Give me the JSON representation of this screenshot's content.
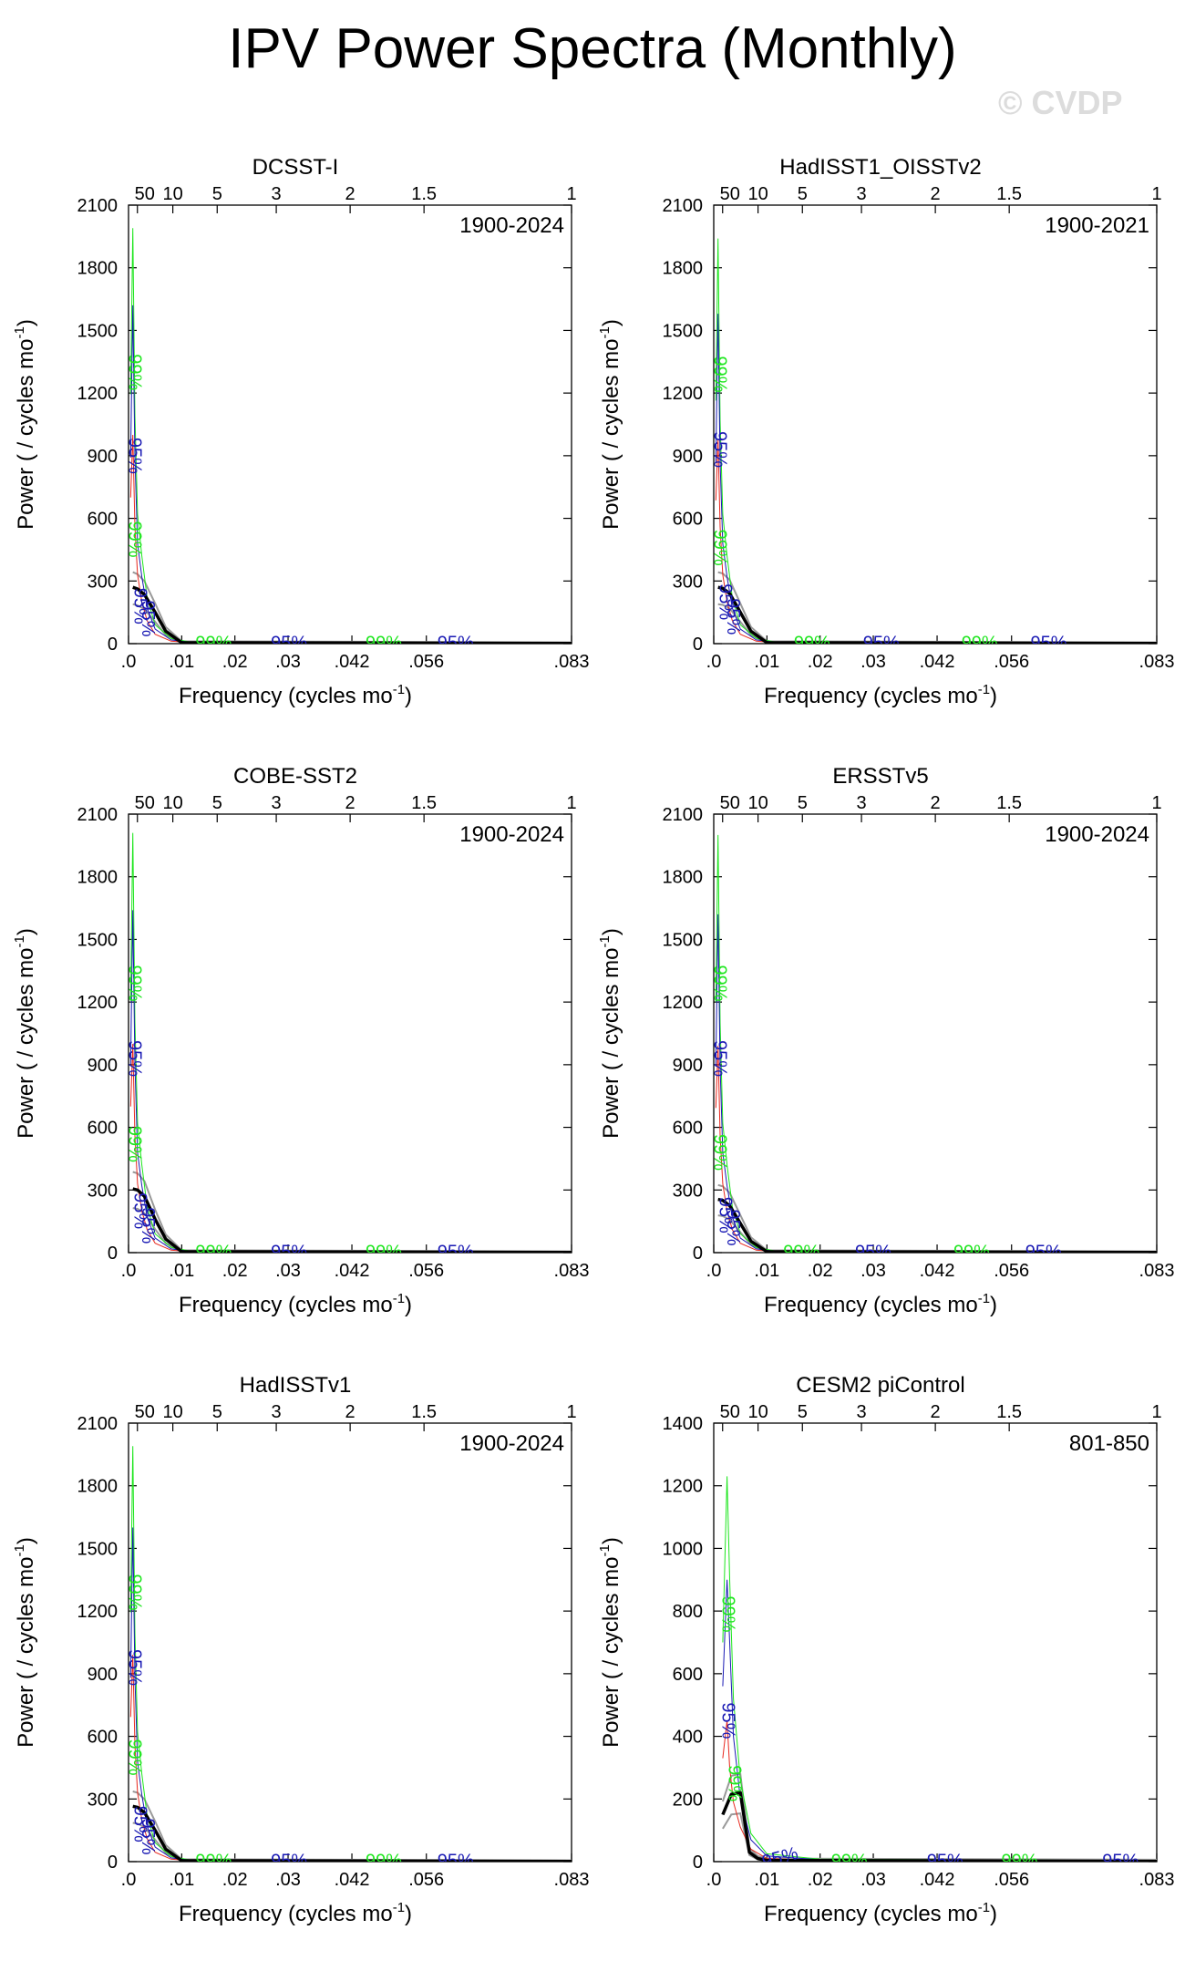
{
  "page_title": "IPV Power Spectra (Monthly)",
  "watermark": "© CVDP",
  "common": {
    "xlabel": "Frequency (cycles mo",
    "xlabel_sup": "-1",
    "xlabel_close": ")",
    "ylabel": "Power ( / cycles mo",
    "ylabel_sup": "-1",
    "ylabel_close": ")",
    "xlim": [
      0,
      0.0833
    ],
    "bottom_ticks": [
      {
        "v": 0.0,
        "label": ".0"
      },
      {
        "v": 0.01,
        "label": ".01"
      },
      {
        "v": 0.02,
        "label": ".02"
      },
      {
        "v": 0.03,
        "label": ".03"
      },
      {
        "v": 0.042,
        "label": ".042"
      },
      {
        "v": 0.056,
        "label": ".056"
      },
      {
        "v": 0.0833,
        "label": ".083"
      }
    ],
    "top_ticks": [
      {
        "v": 0.00167,
        "label": "50"
      },
      {
        "v": 0.00833,
        "label": "10"
      },
      {
        "v": 0.01667,
        "label": "5"
      },
      {
        "v": 0.02778,
        "label": "3"
      },
      {
        "v": 0.04167,
        "label": "2"
      },
      {
        "v": 0.05556,
        "label": "1.5"
      },
      {
        "v": 0.0833,
        "label": "1"
      }
    ],
    "sig_labels": {
      "p99": "99%",
      "p95": "95%"
    },
    "colors": {
      "spectrum": "#000000",
      "red_noise": "#e8281e",
      "p95": "#1a1ab4",
      "p99": "#1ee61e",
      "ci": "#999999"
    }
  },
  "chart_data": [
    {
      "type": "line",
      "title": "DCSST-I",
      "period": "1900-2024",
      "ylim": [
        0,
        2100
      ],
      "yticks": [
        0,
        300,
        600,
        900,
        1200,
        1500,
        1800,
        2100
      ],
      "spike99": 1990,
      "spike95": 1620,
      "red0": 1000,
      "peak": 270,
      "series": [
        {
          "name": "spectrum",
          "x": [
            0.0008,
            0.0017,
            0.003,
            0.005,
            0.007,
            0.01,
            0.0833
          ],
          "values": [
            270,
            262,
            235,
            150,
            60,
            5,
            1
          ]
        }
      ],
      "annotations": [
        {
          "text": "99%",
          "color": "p99",
          "x": 0.001,
          "y": 1300,
          "rot": 90
        },
        {
          "text": "95%",
          "color": "p95",
          "x": 0.001,
          "y": 900,
          "rot": 90
        },
        {
          "text": "99%",
          "color": "p99",
          "x": 0.001,
          "y": 500,
          "rot": 90
        },
        {
          "text": "95%",
          "color": "p95",
          "x": 0.002,
          "y": 180,
          "rot": 90
        },
        {
          "text": "95%",
          "color": "p95",
          "x": 0.0035,
          "y": 120,
          "rot": 90
        },
        {
          "text": "99%",
          "color": "p99",
          "x": 0.016,
          "y": 0,
          "rot": 0
        },
        {
          "text": "95%",
          "color": "p95",
          "x": 0.0302,
          "y": 0,
          "rot": 0
        },
        {
          "text": "99%",
          "color": "p99",
          "x": 0.048,
          "y": 0,
          "rot": 0
        },
        {
          "text": "95%",
          "color": "p95",
          "x": 0.0615,
          "y": 0,
          "rot": 0
        }
      ]
    },
    {
      "type": "line",
      "title": "HadISST1_OISSTv2",
      "period": "1900-2021",
      "ylim": [
        0,
        2100
      ],
      "yticks": [
        0,
        300,
        600,
        900,
        1200,
        1500,
        1800,
        2100
      ],
      "spike99": 1940,
      "spike95": 1580,
      "red0": 980,
      "peak": 270,
      "series": [
        {
          "name": "spectrum",
          "x": [
            0.0008,
            0.0017,
            0.003,
            0.005,
            0.007,
            0.01,
            0.0833
          ],
          "values": [
            270,
            265,
            240,
            150,
            60,
            5,
            1
          ]
        }
      ],
      "annotations": [
        {
          "text": "99%",
          "color": "p99",
          "x": 0.001,
          "y": 1290,
          "rot": 90
        },
        {
          "text": "95%",
          "color": "p95",
          "x": 0.001,
          "y": 930,
          "rot": 90
        },
        {
          "text": "99%",
          "color": "p99",
          "x": 0.001,
          "y": 460,
          "rot": 90
        },
        {
          "text": "95%",
          "color": "p95",
          "x": 0.002,
          "y": 200,
          "rot": 90
        },
        {
          "text": "95%",
          "color": "p95",
          "x": 0.0035,
          "y": 130,
          "rot": 90
        },
        {
          "text": "99%",
          "color": "p99",
          "x": 0.0185,
          "y": 0,
          "rot": 0
        },
        {
          "text": "95%",
          "color": "p95",
          "x": 0.0315,
          "y": 0,
          "rot": 0
        },
        {
          "text": "99%",
          "color": "p99",
          "x": 0.05,
          "y": 0,
          "rot": 0
        },
        {
          "text": "95%",
          "color": "p95",
          "x": 0.063,
          "y": 0,
          "rot": 0
        }
      ]
    },
    {
      "type": "line",
      "title": "COBE-SST2",
      "period": "1900-2024",
      "ylim": [
        0,
        2100
      ],
      "yticks": [
        0,
        300,
        600,
        900,
        1200,
        1500,
        1800,
        2100
      ],
      "spike99": 2010,
      "spike95": 1640,
      "red0": 1000,
      "peak": 305,
      "series": [
        {
          "name": "spectrum",
          "x": [
            0.0008,
            0.0017,
            0.003,
            0.005,
            0.007,
            0.01,
            0.0833
          ],
          "values": [
            305,
            300,
            270,
            160,
            65,
            5,
            1
          ]
        }
      ],
      "annotations": [
        {
          "text": "99%",
          "color": "p99",
          "x": 0.001,
          "y": 1290,
          "rot": 90
        },
        {
          "text": "95%",
          "color": "p95",
          "x": 0.001,
          "y": 930,
          "rot": 90
        },
        {
          "text": "99%",
          "color": "p99",
          "x": 0.001,
          "y": 520,
          "rot": 90
        },
        {
          "text": "95%",
          "color": "p95",
          "x": 0.002,
          "y": 200,
          "rot": 90
        },
        {
          "text": "95%",
          "color": "p95",
          "x": 0.0035,
          "y": 130,
          "rot": 90
        },
        {
          "text": "99%",
          "color": "p99",
          "x": 0.016,
          "y": 0,
          "rot": 0
        },
        {
          "text": "95%",
          "color": "p95",
          "x": 0.0302,
          "y": 0,
          "rot": 0
        },
        {
          "text": "99%",
          "color": "p99",
          "x": 0.048,
          "y": 0,
          "rot": 0
        },
        {
          "text": "95%",
          "color": "p95",
          "x": 0.0615,
          "y": 0,
          "rot": 0
        }
      ]
    },
    {
      "type": "line",
      "title": "ERSSTv5",
      "period": "1900-2024",
      "ylim": [
        0,
        2100
      ],
      "yticks": [
        0,
        300,
        600,
        900,
        1200,
        1500,
        1800,
        2100
      ],
      "spike99": 2000,
      "spike95": 1620,
      "red0": 990,
      "peak": 255,
      "series": [
        {
          "name": "spectrum",
          "x": [
            0.0008,
            0.0017,
            0.003,
            0.005,
            0.007,
            0.01,
            0.0833
          ],
          "values": [
            255,
            250,
            225,
            140,
            55,
            5,
            1
          ]
        }
      ],
      "annotations": [
        {
          "text": "99%",
          "color": "p99",
          "x": 0.001,
          "y": 1290,
          "rot": 90
        },
        {
          "text": "95%",
          "color": "p95",
          "x": 0.001,
          "y": 930,
          "rot": 90
        },
        {
          "text": "99%",
          "color": "p99",
          "x": 0.001,
          "y": 480,
          "rot": 90
        },
        {
          "text": "95%",
          "color": "p95",
          "x": 0.002,
          "y": 180,
          "rot": 90
        },
        {
          "text": "95%",
          "color": "p95",
          "x": 0.0035,
          "y": 120,
          "rot": 90
        },
        {
          "text": "99%",
          "color": "p99",
          "x": 0.0165,
          "y": 0,
          "rot": 0
        },
        {
          "text": "95%",
          "color": "p95",
          "x": 0.03,
          "y": 0,
          "rot": 0
        },
        {
          "text": "99%",
          "color": "p99",
          "x": 0.0485,
          "y": 0,
          "rot": 0
        },
        {
          "text": "95%",
          "color": "p95",
          "x": 0.062,
          "y": 0,
          "rot": 0
        }
      ]
    },
    {
      "type": "line",
      "title": "HadISSTv1",
      "period": "1900-2024",
      "ylim": [
        0,
        2100
      ],
      "yticks": [
        0,
        300,
        600,
        900,
        1200,
        1500,
        1800,
        2100
      ],
      "spike99": 1990,
      "spike95": 1600,
      "red0": 990,
      "peak": 265,
      "series": [
        {
          "name": "spectrum",
          "x": [
            0.0008,
            0.0017,
            0.003,
            0.005,
            0.007,
            0.01,
            0.0833
          ],
          "values": [
            265,
            260,
            235,
            150,
            60,
            5,
            1
          ]
        }
      ],
      "annotations": [
        {
          "text": "99%",
          "color": "p99",
          "x": 0.001,
          "y": 1290,
          "rot": 90
        },
        {
          "text": "95%",
          "color": "p95",
          "x": 0.001,
          "y": 930,
          "rot": 90
        },
        {
          "text": "99%",
          "color": "p99",
          "x": 0.001,
          "y": 500,
          "rot": 90
        },
        {
          "text": "95%",
          "color": "p95",
          "x": 0.002,
          "y": 180,
          "rot": 90
        },
        {
          "text": "95%",
          "color": "p95",
          "x": 0.0035,
          "y": 120,
          "rot": 90
        },
        {
          "text": "99%",
          "color": "p99",
          "x": 0.016,
          "y": 0,
          "rot": 0
        },
        {
          "text": "95%",
          "color": "p95",
          "x": 0.0302,
          "y": 0,
          "rot": 0
        },
        {
          "text": "99%",
          "color": "p99",
          "x": 0.048,
          "y": 0,
          "rot": 0
        },
        {
          "text": "95%",
          "color": "p95",
          "x": 0.0615,
          "y": 0,
          "rot": 0
        }
      ]
    },
    {
      "type": "line",
      "title": "CESM2 piControl",
      "period": "801-850",
      "ylim": [
        0,
        1400
      ],
      "yticks": [
        0,
        200,
        400,
        600,
        800,
        1000,
        1200,
        1400
      ],
      "spike99": 1230,
      "spike95": 900,
      "red0": 450,
      "peak": 220,
      "series": [
        {
          "name": "spectrum",
          "x": [
            0.0017,
            0.0033,
            0.005,
            0.0067,
            0.0083,
            0.01,
            0.0833
          ],
          "values": [
            150,
            215,
            220,
            30,
            10,
            4,
            1
          ]
        }
      ],
      "annotations": [
        {
          "text": "99%",
          "color": "p99",
          "x": 0.0025,
          "y": 790,
          "rot": 90
        },
        {
          "text": "95%",
          "color": "p95",
          "x": 0.0025,
          "y": 450,
          "rot": 90
        },
        {
          "text": "99%",
          "color": "p99",
          "x": 0.0037,
          "y": 250,
          "rot": 90
        },
        {
          "text": "95%",
          "color": "p95",
          "x": 0.0125,
          "y": 10,
          "rot": -15
        },
        {
          "text": "99%",
          "color": "p99",
          "x": 0.0255,
          "y": 0,
          "rot": 0
        },
        {
          "text": "95%",
          "color": "p95",
          "x": 0.0435,
          "y": 0,
          "rot": 0
        },
        {
          "text": "99%",
          "color": "p99",
          "x": 0.0575,
          "y": 0,
          "rot": 0
        },
        {
          "text": "95%",
          "color": "p95",
          "x": 0.0765,
          "y": 0,
          "rot": 0
        }
      ]
    }
  ]
}
